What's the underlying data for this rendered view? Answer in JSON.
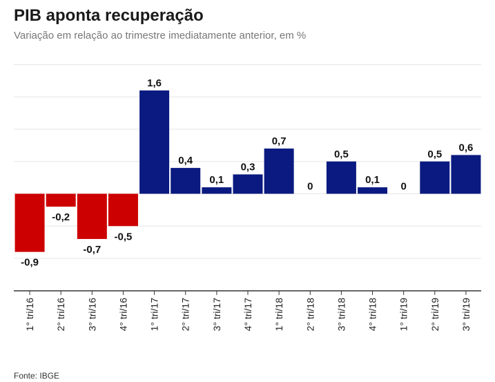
{
  "header": {
    "title": "PIB aponta recuperação",
    "subtitle": "Variação em relação ao trimestre imediatamente anterior, em %"
  },
  "footer": {
    "source": "Fonte: IBGE"
  },
  "chart_data": {
    "type": "bar",
    "title": "PIB aponta recuperação",
    "subtitle": "Variação em relação ao trimestre imediatamente anterior, em %",
    "xlabel": "",
    "ylabel": "",
    "ylim": [
      -1.5,
      2.0
    ],
    "grid": true,
    "categories": [
      "1° tri/16",
      "2° tri/16",
      "3° tri/16",
      "4° tri/16",
      "1° tri/17",
      "2° tri/17",
      "3° tri/17",
      "4° tri/17",
      "1° tri/18",
      "2° tri/18",
      "3° tri/18",
      "4° tri/18",
      "1° tri/19",
      "2° tri/19",
      "3° tri/19"
    ],
    "values": [
      -0.9,
      -0.2,
      -0.7,
      -0.5,
      1.6,
      0.4,
      0.1,
      0.3,
      0.7,
      0,
      0.5,
      0.1,
      0,
      0.5,
      0.6
    ],
    "value_labels": [
      "-0,9",
      "-0,2",
      "-0,7",
      "-0,5",
      "1,6",
      "0,4",
      "0,1",
      "0,3",
      "0,7",
      "0",
      "0,5",
      "0,1",
      "0",
      "0,5",
      "0,6"
    ],
    "colors": {
      "negative": "#cc0000",
      "positive": "#0a1a80"
    }
  }
}
